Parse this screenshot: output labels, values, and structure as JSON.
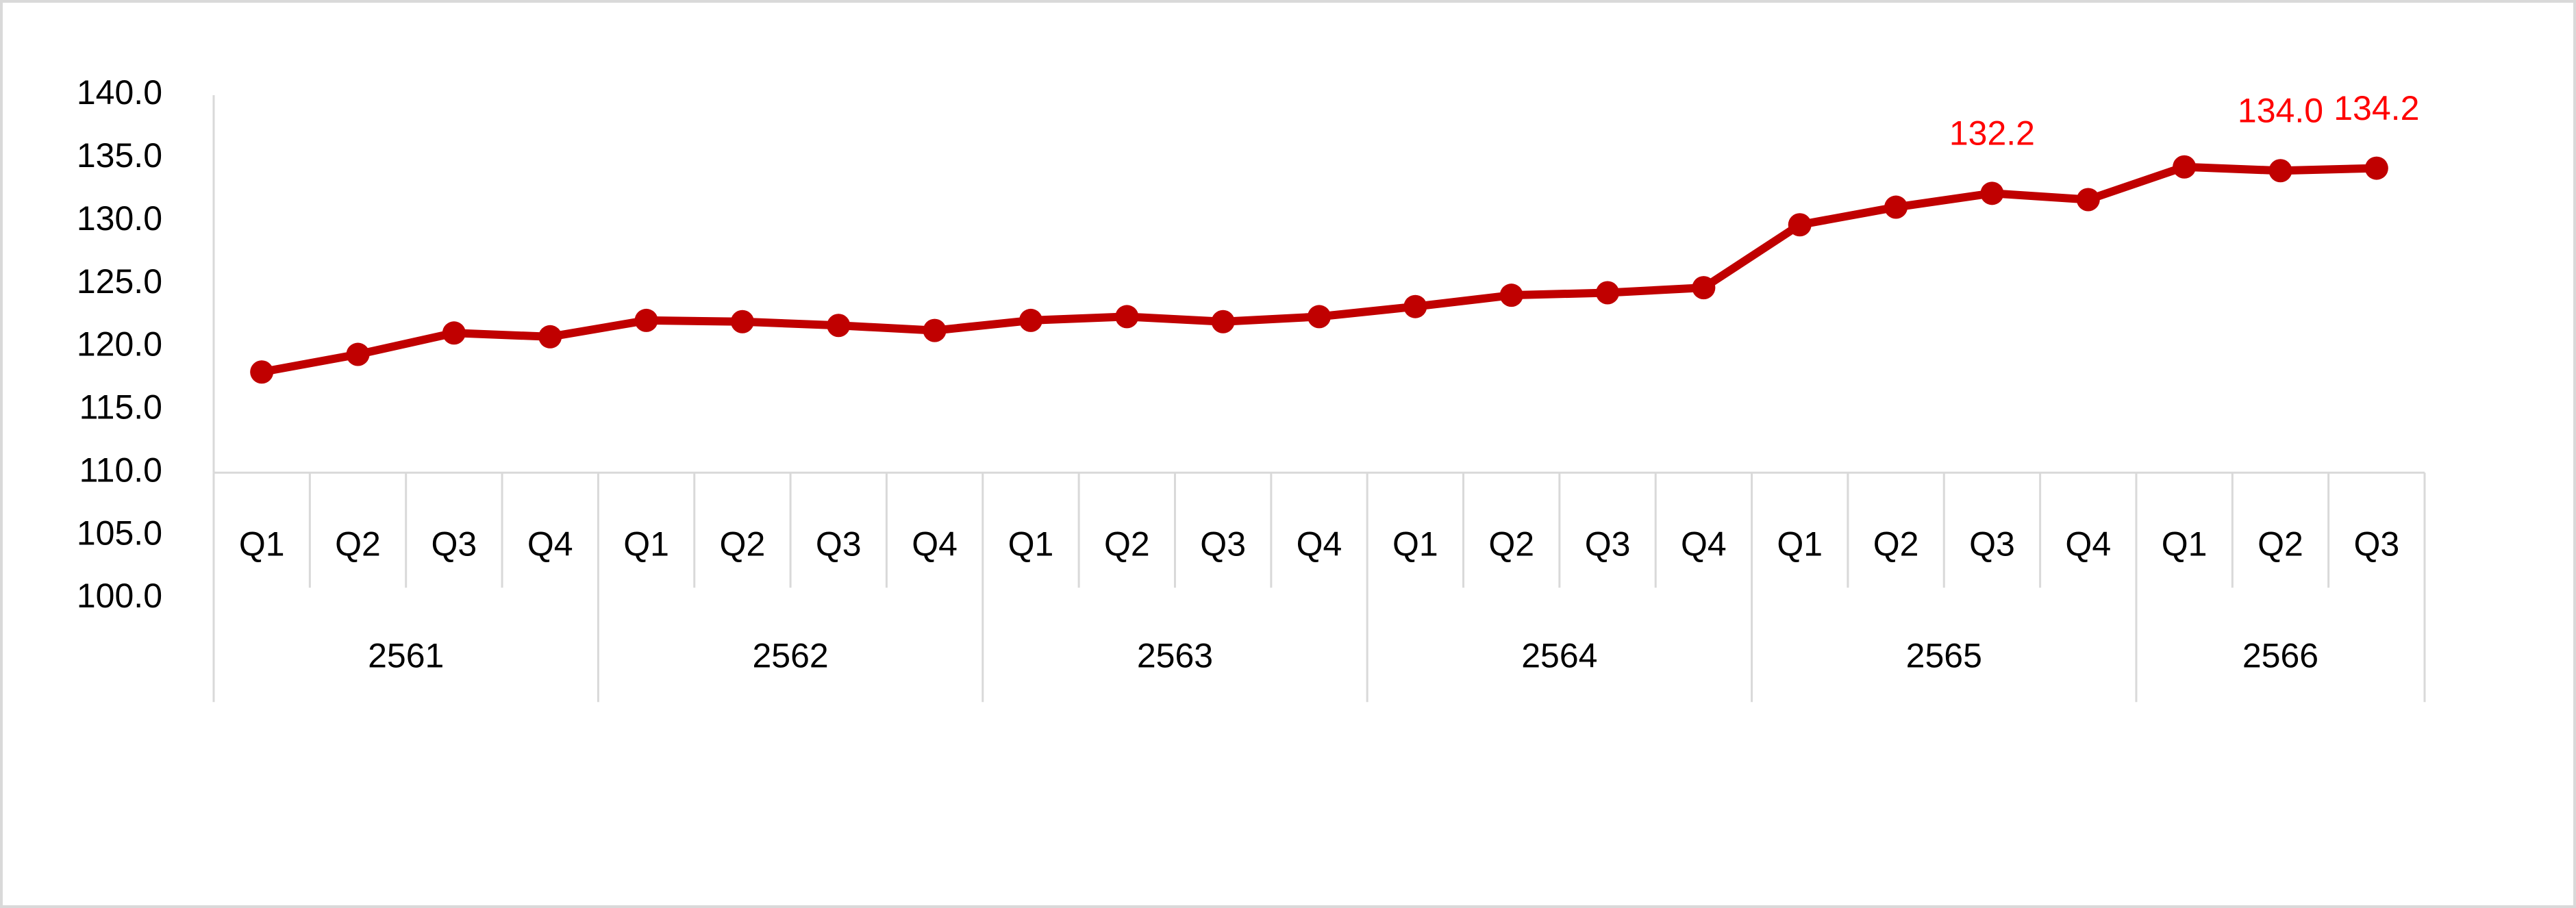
{
  "chart_data": {
    "type": "line",
    "category_groups": [
      {
        "name": "2561",
        "categories": [
          "Q1",
          "Q2",
          "Q3",
          "Q4"
        ]
      },
      {
        "name": "2562",
        "categories": [
          "Q1",
          "Q2",
          "Q3",
          "Q4"
        ]
      },
      {
        "name": "2563",
        "categories": [
          "Q1",
          "Q2",
          "Q3",
          "Q4"
        ]
      },
      {
        "name": "2564",
        "categories": [
          "Q1",
          "Q2",
          "Q3",
          "Q4"
        ]
      },
      {
        "name": "2565",
        "categories": [
          "Q1",
          "Q2",
          "Q3",
          "Q4"
        ]
      },
      {
        "name": "2566",
        "categories": [
          "Q1",
          "Q2",
          "Q3"
        ]
      }
    ],
    "values": [
      118.0,
      119.4,
      121.1,
      120.8,
      122.1,
      122.0,
      121.7,
      121.3,
      122.1,
      122.4,
      122.0,
      122.4,
      123.2,
      124.1,
      124.3,
      124.7,
      129.7,
      131.1,
      132.2,
      131.7,
      134.3,
      134.0,
      134.2
    ],
    "value_labels": [
      null,
      null,
      null,
      null,
      null,
      null,
      null,
      null,
      null,
      null,
      null,
      null,
      null,
      null,
      null,
      null,
      null,
      null,
      "132.2",
      null,
      null,
      "134.0",
      "134.2"
    ],
    "color": "#c00000",
    "label_color": "#ff0000",
    "ylim": [
      100,
      140
    ],
    "yticks": [
      {
        "value": 100,
        "label": "100.0"
      },
      {
        "value": 105,
        "label": "105.0"
      },
      {
        "value": 110,
        "label": "110.0"
      },
      {
        "value": 115,
        "label": "115.0"
      },
      {
        "value": 120,
        "label": "120.0"
      },
      {
        "value": 125,
        "label": "125.0"
      },
      {
        "value": 130,
        "label": "130.0"
      },
      {
        "value": 135,
        "label": "135.0"
      },
      {
        "value": 140,
        "label": "140.0"
      }
    ],
    "x_axis_crossing": 110,
    "grid": false
  }
}
